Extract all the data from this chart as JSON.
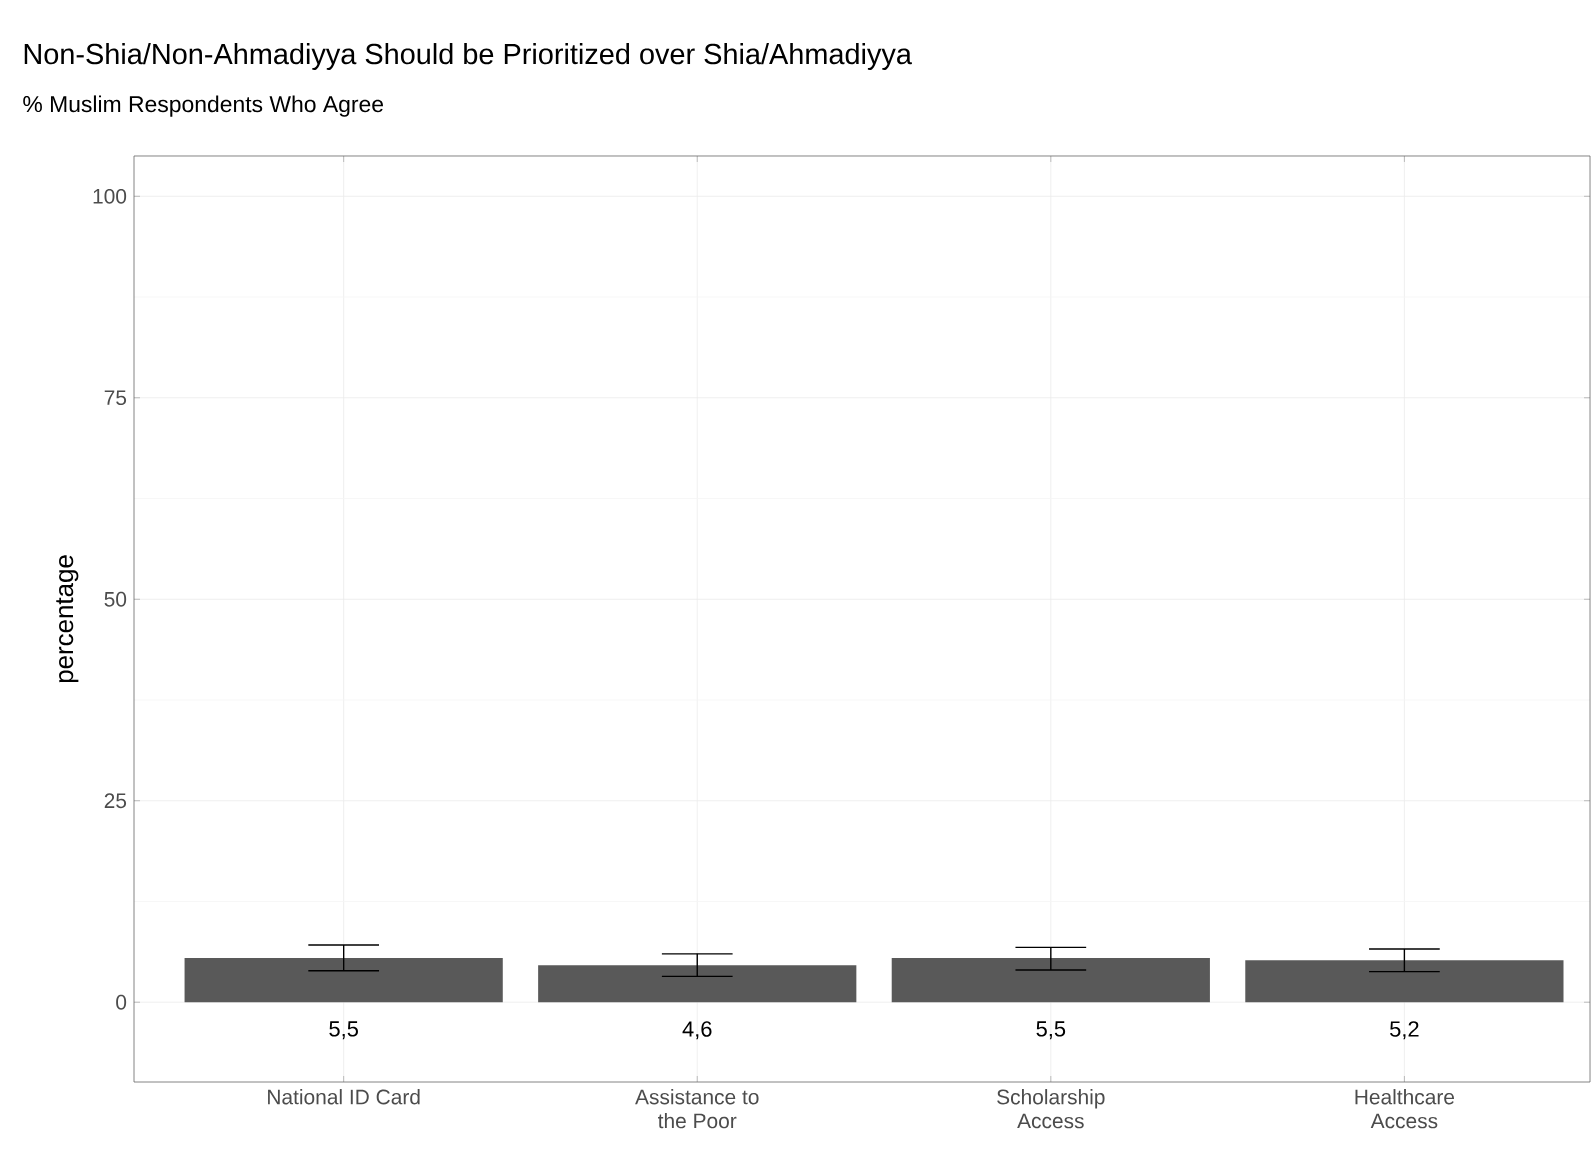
{
  "chart_data": {
    "type": "bar",
    "title": "Non-Shia/Non-Ahmadiyya Should be Prioritized over Shia/Ahmadiyya",
    "subtitle": "% Muslim Respondents Who Agree",
    "ylabel": "percentage",
    "categories": [
      "National ID Card",
      "Assistance to the Poor",
      "Scholarship Access",
      "Healthcare Access"
    ],
    "values": [
      5.5,
      4.6,
      5.5,
      5.2
    ],
    "value_labels": [
      "5,5",
      "4,6",
      "5,5",
      "5,2"
    ],
    "errors": [
      [
        3.9,
        7.1
      ],
      [
        3.2,
        6.0
      ],
      [
        4.0,
        6.8
      ],
      [
        3.8,
        6.6
      ]
    ],
    "color": "#595959",
    "ylim": [
      -9.9,
      105
    ],
    "yticks": [
      0,
      25,
      50,
      75,
      100
    ],
    "grid": true
  }
}
